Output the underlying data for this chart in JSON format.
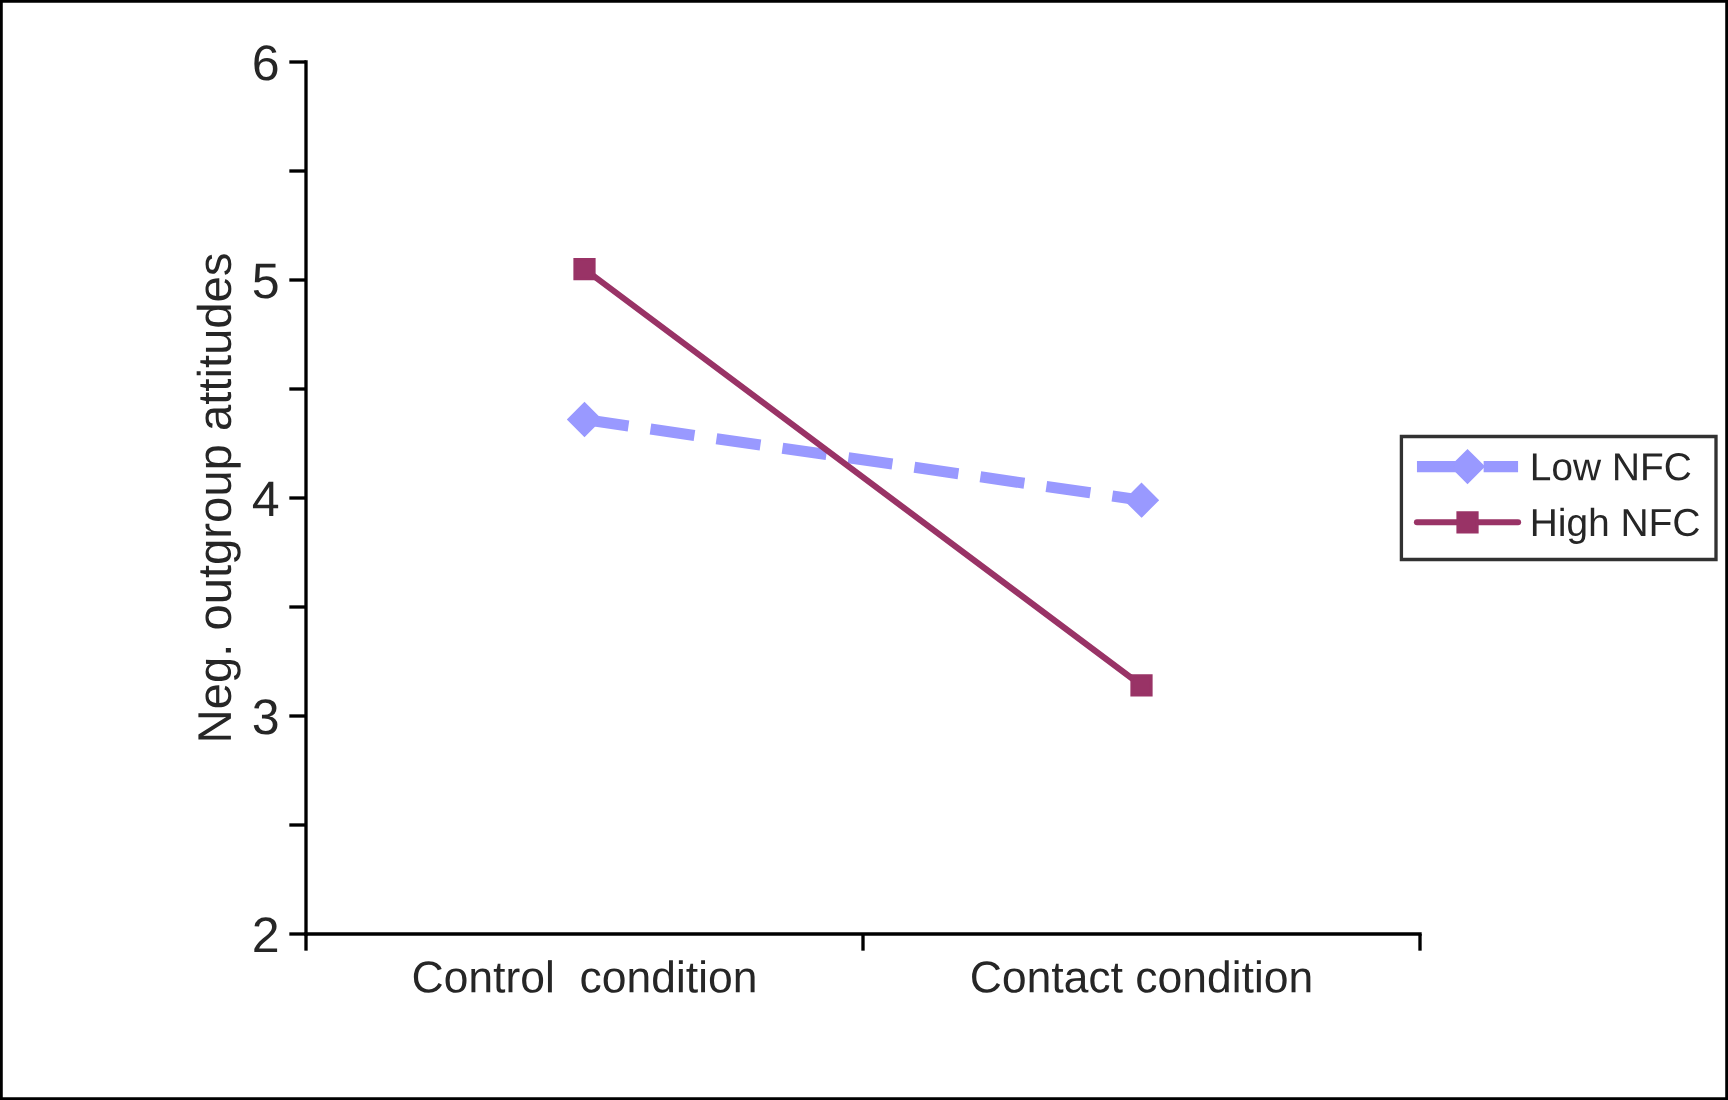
{
  "chart_data": {
    "type": "line",
    "ylabel": "Neg. outgroup attitudes",
    "categories": [
      "Control  condition",
      "Contact condition"
    ],
    "series": [
      {
        "name": "Low NFC",
        "color": "#9999ff",
        "values": [
          4.36,
          3.99
        ],
        "marker": "diamond",
        "line_style": "dashed"
      },
      {
        "name": "High NFC",
        "color": "#993366",
        "values": [
          5.05,
          3.14
        ],
        "marker": "square",
        "line_style": "solid"
      }
    ],
    "ylim": [
      2,
      6
    ],
    "yticks": [
      2,
      {
        "value": 2.5,
        "label": null
      },
      3,
      {
        "value": 3.5,
        "label": null
      },
      4,
      {
        "value": 4.5,
        "label": null
      },
      5,
      {
        "value": 5.5,
        "label": null
      },
      6
    ],
    "grid": false,
    "legend": "right"
  }
}
